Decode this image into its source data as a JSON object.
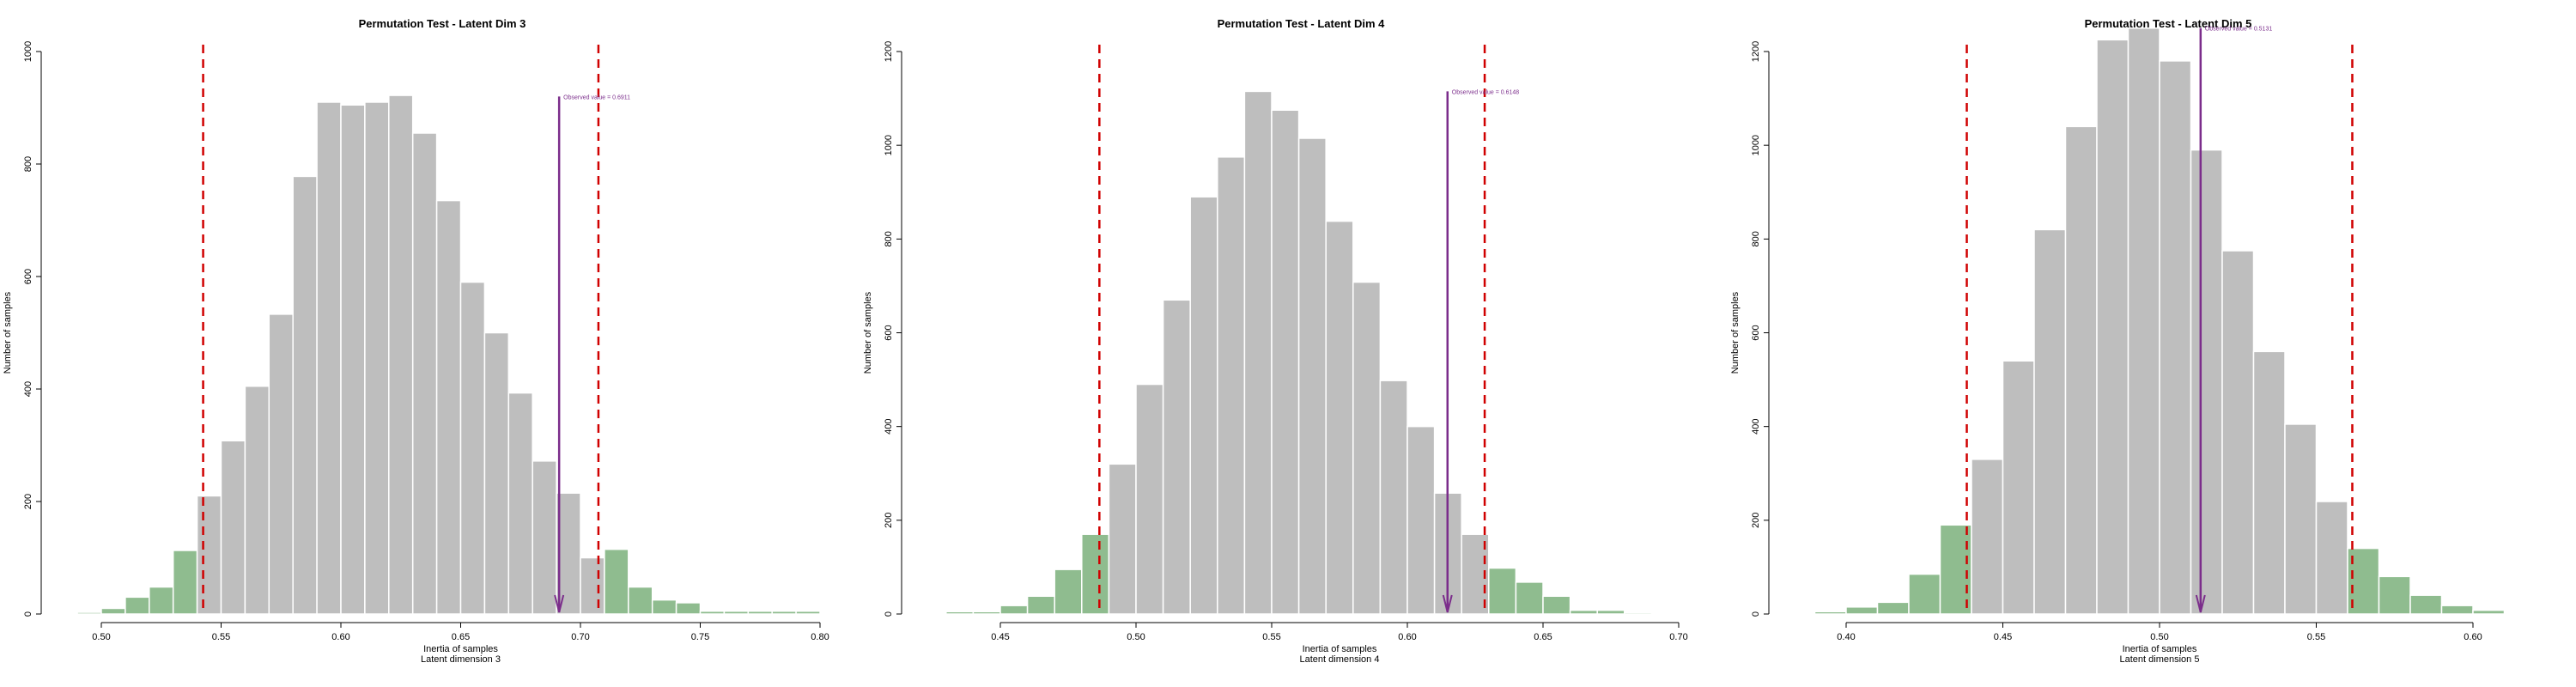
{
  "colors": {
    "bar_inner": "#bebebe",
    "bar_tail": "#8fbc8f",
    "bar_edge": "#ffffff",
    "threshold": "#d00000",
    "observed": "#7b2d8b",
    "axis": "#000000"
  },
  "chart_data": [
    {
      "type": "bar",
      "title": "Permutation Test - Latent Dim 3",
      "xlabel": "Inertia of samples",
      "xlabel2": "Latent dimension 3",
      "ylabel": "Number of samples",
      "xlim": [
        0.5,
        0.8
      ],
      "ylim": [
        0,
        1000
      ],
      "xticks": [
        "0.50",
        "0.55",
        "0.60",
        "0.65",
        "0.70",
        "0.75",
        "0.80"
      ],
      "xtick_values": [
        0.5,
        0.55,
        0.6,
        0.65,
        0.7,
        0.75,
        0.8
      ],
      "yticks": [
        "0",
        "200",
        "400",
        "600",
        "800",
        "1000"
      ],
      "ytick_values": [
        0,
        200,
        400,
        600,
        800,
        1000
      ],
      "bin_start": 0.49,
      "bin_width": 0.01,
      "values": [
        3,
        10,
        30,
        48,
        113,
        210,
        308,
        405,
        533,
        778,
        910,
        905,
        910,
        922,
        855,
        735,
        590,
        500,
        393,
        272,
        215,
        100,
        115,
        48,
        25,
        20,
        5,
        5,
        5,
        5,
        5
      ],
      "lower_threshold": 0.5425,
      "upper_threshold": 0.7075,
      "observed_value": 0.6911,
      "observed_label": "Observed value = 0.6911",
      "arrow_top": 920
    },
    {
      "type": "bar",
      "title": "Permutation Test - Latent Dim 4",
      "xlabel": "Inertia of samples",
      "xlabel2": "Latent dimension 4",
      "ylabel": "Number of samples",
      "xlim": [
        0.45,
        0.7
      ],
      "ylim": [
        0,
        1200
      ],
      "xticks": [
        "0.45",
        "0.50",
        "0.55",
        "0.60",
        "0.65",
        "0.70"
      ],
      "xtick_values": [
        0.45,
        0.5,
        0.55,
        0.6,
        0.65,
        0.7
      ],
      "yticks": [
        "0",
        "200",
        "400",
        "600",
        "800",
        "1000",
        "1200"
      ],
      "ytick_values": [
        0,
        200,
        400,
        600,
        800,
        1000,
        1200
      ],
      "bin_start": 0.43,
      "bin_width": 0.01,
      "values": [
        5,
        5,
        18,
        38,
        95,
        170,
        320,
        490,
        670,
        890,
        975,
        1115,
        1075,
        1015,
        838,
        708,
        498,
        400,
        258,
        170,
        98,
        68,
        38,
        8,
        8,
        3
      ],
      "lower_threshold": 0.4865,
      "upper_threshold": 0.6285,
      "observed_value": 0.6148,
      "observed_label": "Observed value = 0.6148",
      "arrow_top": 1115
    },
    {
      "type": "bar",
      "title": "Permutation Test - Latent Dim 5",
      "xlabel": "Inertia of samples",
      "xlabel2": "Latent dimension 5",
      "ylabel": "Number of samples",
      "xlim": [
        0.4,
        0.6
      ],
      "ylim": [
        0,
        1200
      ],
      "xticks": [
        "0.40",
        "0.45",
        "0.50",
        "0.55",
        "0.60"
      ],
      "xtick_values": [
        0.4,
        0.45,
        0.5,
        0.55,
        0.6
      ],
      "yticks": [
        "0",
        "200",
        "400",
        "600",
        "800",
        "1000",
        "1200"
      ],
      "ytick_values": [
        0,
        200,
        400,
        600,
        800,
        1000,
        1200
      ],
      "bin_start": 0.39,
      "bin_width": 0.01,
      "values": [
        5,
        15,
        25,
        85,
        190,
        330,
        540,
        820,
        1040,
        1225,
        1250,
        1180,
        990,
        775,
        560,
        405,
        240,
        140,
        80,
        40,
        18,
        8
      ],
      "lower_threshold": 0.4385,
      "upper_threshold": 0.5615,
      "observed_value": 0.5131,
      "observed_label": "Observed value = 0.5131",
      "arrow_top": 1250
    }
  ]
}
